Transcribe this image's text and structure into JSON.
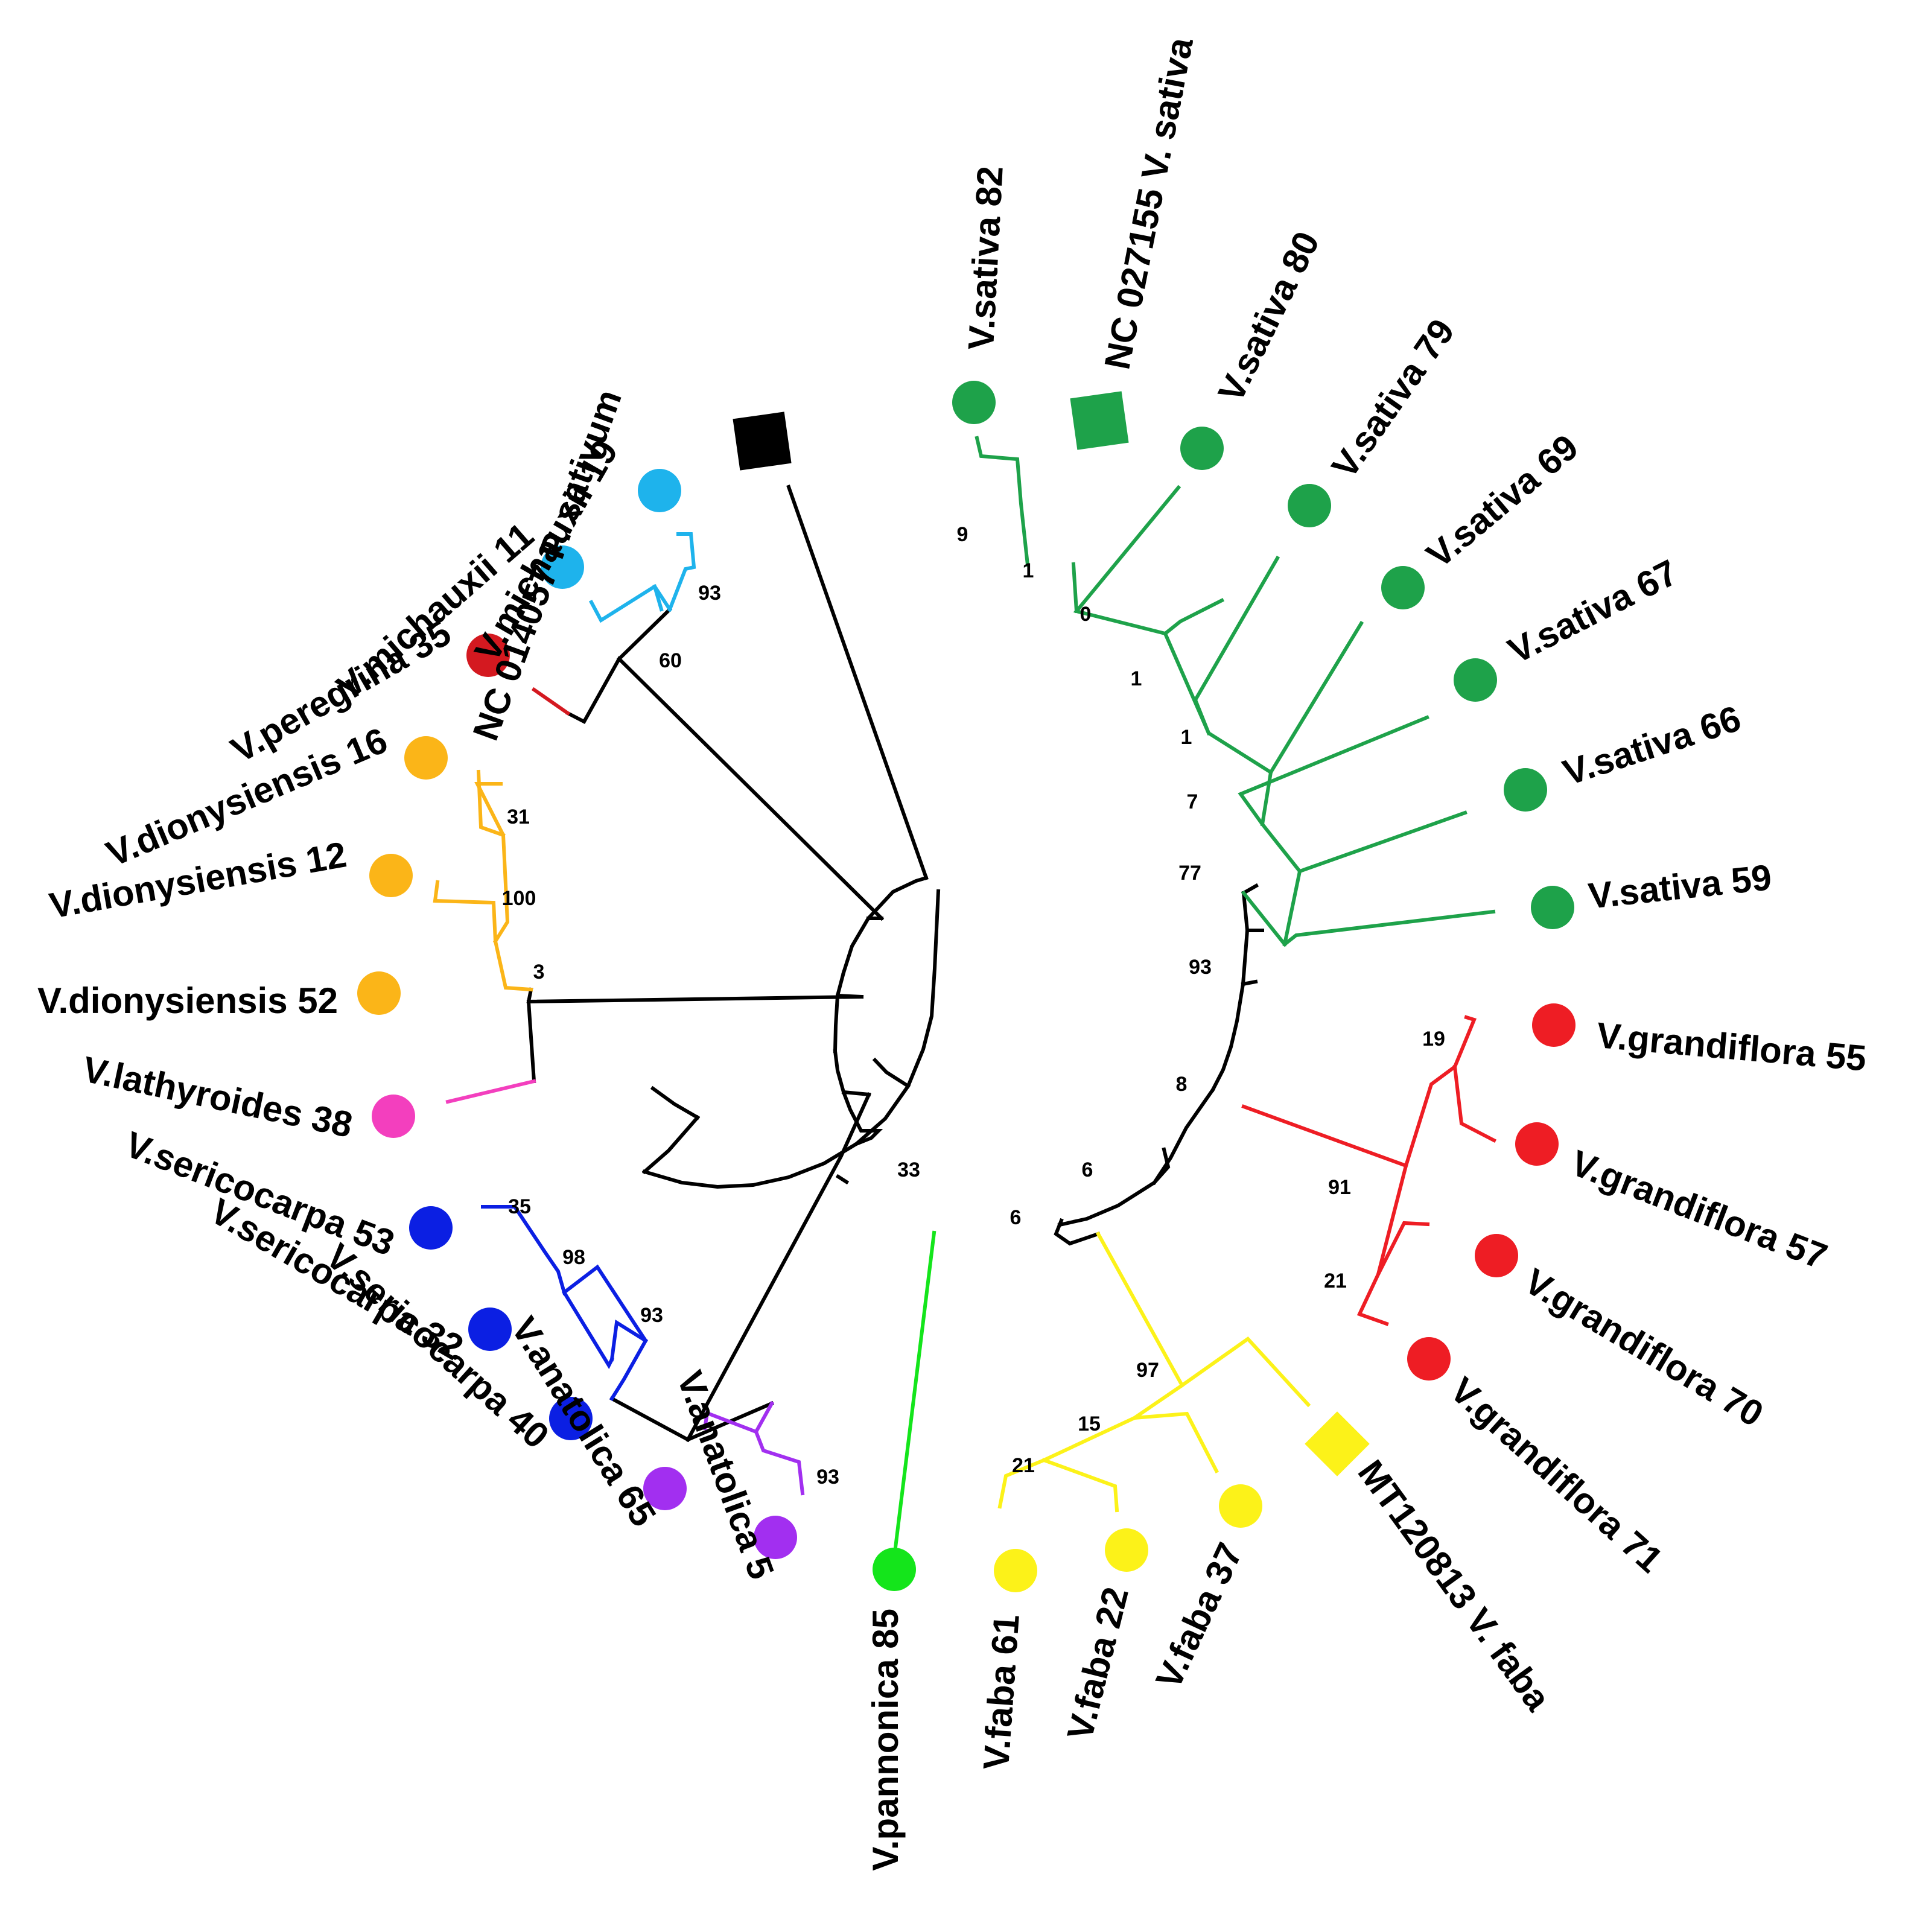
{
  "diagram": {
    "type": "circular phylogenetic tree",
    "colors": {
      "black": "#000000",
      "sky": "#1eb3ec",
      "red": "#ee1d24",
      "dark_red": "#d41920",
      "orange": "#fbb518",
      "magenta": "#f33fbe",
      "blue": "#0b1fe3",
      "purple": "#a22ff0",
      "light_green": "#14e51b",
      "yellow": "#fcf219",
      "green": "#1ea24a"
    },
    "tips": [
      {
        "label": "NC 014057 P. sativum",
        "shape": "square",
        "color": "#000000"
      },
      {
        "label": "V.michauxii 19",
        "shape": "circle",
        "color": "#1eb3ec"
      },
      {
        "label": "V.michauxii 11",
        "shape": "circle",
        "color": "#1eb3ec"
      },
      {
        "label": "V.peregrina 35",
        "shape": "circle",
        "color": "#d41920"
      },
      {
        "label": "V.dionysiensis 16",
        "shape": "circle",
        "color": "#fbb518"
      },
      {
        "label": "V.dionysiensis 12",
        "shape": "circle",
        "color": "#fbb518"
      },
      {
        "label": "V.dionysiensis 52",
        "shape": "circle",
        "color": "#fbb518"
      },
      {
        "label": "V.lathyroides 38",
        "shape": "circle",
        "color": "#f33fbe"
      },
      {
        "label": "V.sericocarpa 53",
        "shape": "circle",
        "color": "#0b1fe3"
      },
      {
        "label": "V.sericocarpa 32",
        "shape": "circle",
        "color": "#0b1fe3"
      },
      {
        "label": "V.sericocarpa 40",
        "shape": "circle",
        "color": "#0b1fe3"
      },
      {
        "label": "V.anatolica 65",
        "shape": "circle",
        "color": "#a22ff0"
      },
      {
        "label": "V.anatolica 5",
        "shape": "circle",
        "color": "#a22ff0"
      },
      {
        "label": "V.pannonica 85",
        "shape": "circle",
        "color": "#14e51b"
      },
      {
        "label": "V.faba 61",
        "shape": "circle",
        "color": "#fcf219"
      },
      {
        "label": "V.faba 22",
        "shape": "circle",
        "color": "#fcf219"
      },
      {
        "label": "V.faba 37",
        "shape": "circle",
        "color": "#fcf219"
      },
      {
        "label": "MT120813 V. faba",
        "shape": "diamond",
        "color": "#fcf219"
      },
      {
        "label": "V.grandiflora 71",
        "shape": "circle",
        "color": "#ee1d24"
      },
      {
        "label": "V.grandiflora 70",
        "shape": "circle",
        "color": "#ee1d24"
      },
      {
        "label": "V.grandiflora 57",
        "shape": "circle",
        "color": "#ee1d24"
      },
      {
        "label": "V.grandiflora 55",
        "shape": "circle",
        "color": "#ee1d24"
      },
      {
        "label": "V.sativa 59",
        "shape": "circle",
        "color": "#1ea24a"
      },
      {
        "label": "V.sativa 66",
        "shape": "circle",
        "color": "#1ea24a"
      },
      {
        "label": "V.sativa 67",
        "shape": "circle",
        "color": "#1ea24a"
      },
      {
        "label": "V.sativa 69",
        "shape": "circle",
        "color": "#1ea24a"
      },
      {
        "label": "V.sativa 79",
        "shape": "circle",
        "color": "#1ea24a"
      },
      {
        "label": "V.sativa 80",
        "shape": "circle",
        "color": "#1ea24a"
      },
      {
        "label": "NC 027155 V. sativa",
        "shape": "square",
        "color": "#1ea24a"
      },
      {
        "label": "V.sativa 82",
        "shape": "circle",
        "color": "#1ea24a"
      }
    ],
    "bootstrap_labels": [
      "93",
      "60",
      "31",
      "100",
      "3",
      "35",
      "98",
      "93",
      "93",
      "33",
      "6",
      "6",
      "97",
      "15",
      "21",
      "8",
      "91",
      "19",
      "21",
      "93",
      "77",
      "7",
      "1",
      "1",
      "0",
      "1",
      "9"
    ]
  }
}
